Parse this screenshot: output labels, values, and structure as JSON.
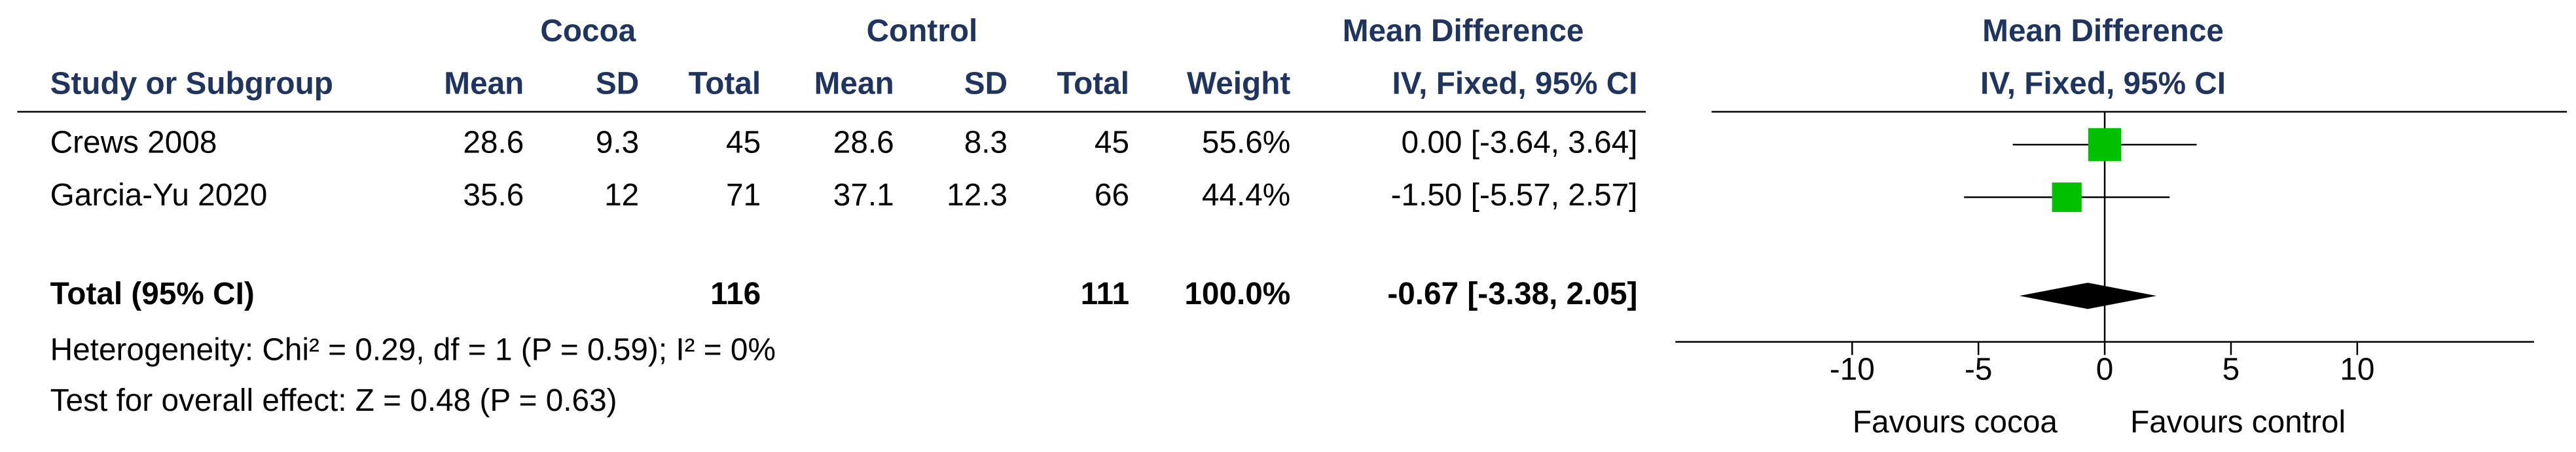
{
  "chart_data": {
    "type": "forest",
    "group_headers": [
      "Cocoa",
      "Control",
      "Mean Difference",
      "Mean Difference"
    ],
    "column_headers": [
      "Study or Subgroup",
      "Mean",
      "SD",
      "Total",
      "Mean",
      "SD",
      "Total",
      "Weight",
      "IV, Fixed, 95% CI",
      "IV, Fixed, 95% CI"
    ],
    "studies": [
      {
        "name": "Crews 2008",
        "cocoa_mean": 28.6,
        "cocoa_sd": 9.3,
        "cocoa_total": 45,
        "control_mean": 28.6,
        "control_sd": 8.3,
        "control_total": 45,
        "weight": 55.6,
        "weight_label": "55.6%",
        "md": 0.0,
        "ci": [
          -3.64,
          3.64
        ],
        "md_label": "0.00 [-3.64, 3.64]"
      },
      {
        "name": "Garcia-Yu 2020",
        "cocoa_mean": 35.6,
        "cocoa_sd": 12,
        "cocoa_total": 71,
        "control_mean": 37.1,
        "control_sd": 12.3,
        "control_total": 66,
        "weight": 44.4,
        "weight_label": "44.4%",
        "md": -1.5,
        "ci": [
          -5.57,
          2.57
        ],
        "md_label": "-1.50 [-5.57, 2.57]"
      }
    ],
    "total": {
      "name": "Total (95% CI)",
      "cocoa_total": 116,
      "control_total": 111,
      "weight_label": "100.0%",
      "md": -0.67,
      "ci": [
        -3.38,
        2.05
      ],
      "md_label": "-0.67 [-3.38, 2.05]"
    },
    "heterogeneity": "Heterogeneity: Chi² = 0.29, df = 1 (P = 0.59); I² = 0%",
    "overall_effect": "Test for overall effect: Z = 0.48 (P = 0.63)",
    "favours": [
      "Favours cocoa",
      "Favours control"
    ],
    "square_color": "#00c000",
    "diamond_color": "#000000",
    "xlim": [
      -17,
      17
    ],
    "xticks": [
      -10,
      -5,
      0,
      5,
      10
    ]
  }
}
